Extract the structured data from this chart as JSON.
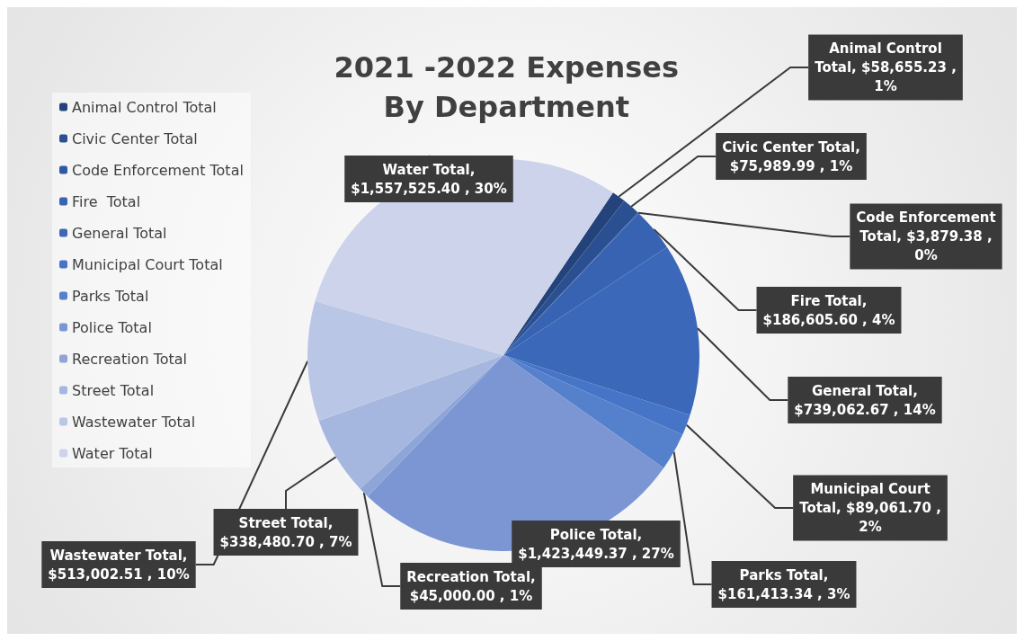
{
  "chart_data": {
    "type": "pie",
    "title": "2021 -2022 Expenses\nBy Department",
    "categories": [
      "Animal Control Total",
      "Civic Center Total",
      "Code Enforcement Total",
      "Fire  Total",
      "General Total",
      "Municipal Court Total",
      "Parks Total",
      "Police Total",
      "Recreation Total",
      "Street Total",
      "Wastewater Total",
      "Water Total"
    ],
    "values": [
      58655.23,
      75989.99,
      3879.38,
      186605.6,
      739062.67,
      89061.7,
      161413.34,
      1423449.37,
      45000.0,
      338480.7,
      513002.51,
      1557525.4
    ],
    "value_labels": [
      "Animal Control\nTotal, $58,655.23 ,\n1%",
      "Civic Center Total,\n$75,989.99 , 1%",
      "Code Enforcement\nTotal, $3,879.38 ,\n0%",
      "Fire Total,\n$186,605.60 , 4%",
      "General Total,\n$739,062.67 , 14%",
      "Municipal Court\nTotal, $89,061.70 ,\n2%",
      "Parks Total,\n$161,413.34 , 3%",
      "Police Total,\n$1,423,449.37 , 27%",
      "Recreation Total,\n$45,000.00 , 1%",
      "Street Total,\n$338,480.70 , 7%",
      "Wastewater Total,\n$513,002.51 , 10%",
      "Water Total,\n$1,557,525.40 , 30%"
    ],
    "colors": [
      "#24437a",
      "#2b5091",
      "#3059a3",
      "#3763b2",
      "#3b68b9",
      "#4674c6",
      "#5580cc",
      "#7b96d2",
      "#8ea5d8",
      "#a5b6df",
      "#bac6e6",
      "#ccd3ea"
    ],
    "legend": "left"
  }
}
